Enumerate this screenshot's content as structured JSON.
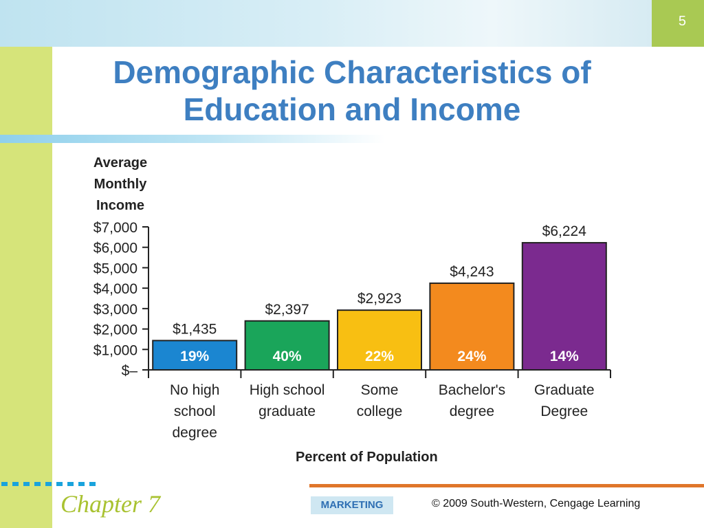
{
  "slide": {
    "page_number": "5",
    "title_line1": "Demographic Characteristics of",
    "title_line2": "Education and Income",
    "footer_chapter": "Chapter 7",
    "footer_marketing": "MARKETING",
    "footer_copyright": "© 2009 South-Western, Cengage Learning"
  },
  "colors": {
    "title": "#3e7fc1",
    "left_bar": "#d6e47a",
    "page_box": "#a9c953",
    "footer_rule": "#e0762b",
    "chapter": "#a9c231"
  },
  "chart_data": {
    "type": "bar",
    "ylabel_lines": [
      "Average",
      "Monthly",
      "Income"
    ],
    "xlabel": "Percent of Population",
    "ylim": [
      0,
      7000
    ],
    "yticks": [
      {
        "value": 0,
        "label": "$–"
      },
      {
        "value": 1000,
        "label": "$1,000"
      },
      {
        "value": 2000,
        "label": "$2,000"
      },
      {
        "value": 3000,
        "label": "$3,000"
      },
      {
        "value": 4000,
        "label": "$4,000"
      },
      {
        "value": 5000,
        "label": "$5,000"
      },
      {
        "value": 6000,
        "label": "$6,000"
      },
      {
        "value": 7000,
        "label": "$7,000"
      }
    ],
    "bars": [
      {
        "category_lines": [
          "No high",
          "school",
          "degree"
        ],
        "value": 1435,
        "value_label": "$1,435",
        "percent_label": "19%",
        "color": "#1b86d1"
      },
      {
        "category_lines": [
          "High school",
          "graduate"
        ],
        "value": 2397,
        "value_label": "$2,397",
        "percent_label": "40%",
        "color": "#1aa55a"
      },
      {
        "category_lines": [
          "Some",
          "college"
        ],
        "value": 2923,
        "value_label": "$2,923",
        "percent_label": "22%",
        "color": "#f8bf12"
      },
      {
        "category_lines": [
          "Bachelor's",
          "degree"
        ],
        "value": 4243,
        "value_label": "$4,243",
        "percent_label": "24%",
        "color": "#f38a1e"
      },
      {
        "category_lines": [
          "Graduate",
          "Degree"
        ],
        "value": 6224,
        "value_label": "$6,224",
        "percent_label": "14%",
        "color": "#7b2a8f"
      }
    ]
  }
}
